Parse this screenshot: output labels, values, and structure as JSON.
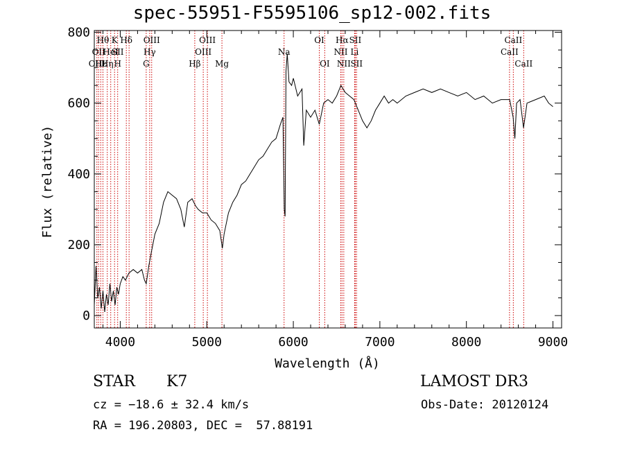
{
  "header": {
    "title": "spec-55951-F5595106_sp12-002.fits"
  },
  "info": {
    "class_label": "STAR",
    "subclass_label": "K7",
    "survey_label": "LAMOST DR3",
    "cz_text": "cz = −18.6 ± 32.4 km/s",
    "obs_date_text": "Obs-Date: 20120124",
    "coords_text": "RA = 196.20803, DEC =  57.88191"
  },
  "colors": {
    "spectrum": "#000000",
    "line_marker": "#cc0000",
    "axes": "#000000"
  },
  "chart_data": {
    "type": "line",
    "title": "spec-55951-F5595106_sp12-002.fits",
    "xlabel": "Wavelength (Å)",
    "ylabel": "Flux (relative)",
    "xlim": [
      3700,
      9100
    ],
    "ylim": [
      -35,
      805
    ],
    "xticks": [
      4000,
      5000,
      6000,
      7000,
      8000,
      9000
    ],
    "yticks": [
      0,
      200,
      400,
      600,
      800
    ],
    "grid": false,
    "series": [
      {
        "points": [
          [
            3700,
            30
          ],
          [
            3720,
            140
          ],
          [
            3740,
            50
          ],
          [
            3760,
            80
          ],
          [
            3780,
            20
          ],
          [
            3800,
            70
          ],
          [
            3820,
            10
          ],
          [
            3840,
            60
          ],
          [
            3860,
            30
          ],
          [
            3880,
            90
          ],
          [
            3900,
            40
          ],
          [
            3920,
            70
          ],
          [
            3940,
            30
          ],
          [
            3960,
            80
          ],
          [
            3980,
            60
          ],
          [
            4000,
            90
          ],
          [
            4030,
            110
          ],
          [
            4060,
            100
          ],
          [
            4100,
            120
          ],
          [
            4150,
            130
          ],
          [
            4200,
            120
          ],
          [
            4250,
            130
          ],
          [
            4280,
            100
          ],
          [
            4300,
            90
          ],
          [
            4330,
            140
          ],
          [
            4360,
            180
          ],
          [
            4400,
            230
          ],
          [
            4450,
            260
          ],
          [
            4500,
            320
          ],
          [
            4550,
            350
          ],
          [
            4600,
            340
          ],
          [
            4650,
            330
          ],
          [
            4700,
            300
          ],
          [
            4740,
            250
          ],
          [
            4780,
            320
          ],
          [
            4830,
            330
          ],
          [
            4870,
            310
          ],
          [
            4900,
            300
          ],
          [
            4950,
            290
          ],
          [
            5000,
            290
          ],
          [
            5050,
            270
          ],
          [
            5100,
            260
          ],
          [
            5150,
            240
          ],
          [
            5180,
            190
          ],
          [
            5200,
            230
          ],
          [
            5250,
            290
          ],
          [
            5300,
            320
          ],
          [
            5350,
            340
          ],
          [
            5400,
            370
          ],
          [
            5450,
            380
          ],
          [
            5500,
            400
          ],
          [
            5550,
            420
          ],
          [
            5600,
            440
          ],
          [
            5650,
            450
          ],
          [
            5700,
            470
          ],
          [
            5750,
            490
          ],
          [
            5800,
            500
          ],
          [
            5850,
            540
          ],
          [
            5880,
            560
          ],
          [
            5895,
            300
          ],
          [
            5905,
            280
          ],
          [
            5915,
            690
          ],
          [
            5930,
            740
          ],
          [
            5950,
            660
          ],
          [
            5980,
            650
          ],
          [
            6000,
            670
          ],
          [
            6050,
            620
          ],
          [
            6100,
            640
          ],
          [
            6120,
            480
          ],
          [
            6150,
            580
          ],
          [
            6200,
            560
          ],
          [
            6250,
            580
          ],
          [
            6300,
            540
          ],
          [
            6350,
            600
          ],
          [
            6400,
            610
          ],
          [
            6450,
            600
          ],
          [
            6500,
            620
          ],
          [
            6550,
            650
          ],
          [
            6600,
            630
          ],
          [
            6650,
            620
          ],
          [
            6700,
            610
          ],
          [
            6750,
            580
          ],
          [
            6800,
            550
          ],
          [
            6850,
            530
          ],
          [
            6900,
            550
          ],
          [
            6950,
            580
          ],
          [
            7000,
            600
          ],
          [
            7050,
            620
          ],
          [
            7100,
            600
          ],
          [
            7150,
            610
          ],
          [
            7200,
            600
          ],
          [
            7300,
            620
          ],
          [
            7400,
            630
          ],
          [
            7500,
            640
          ],
          [
            7600,
            630
          ],
          [
            7700,
            640
          ],
          [
            7800,
            630
          ],
          [
            7900,
            620
          ],
          [
            8000,
            630
          ],
          [
            8100,
            610
          ],
          [
            8200,
            620
          ],
          [
            8300,
            600
          ],
          [
            8400,
            610
          ],
          [
            8500,
            610
          ],
          [
            8540,
            560
          ],
          [
            8560,
            500
          ],
          [
            8580,
            600
          ],
          [
            8620,
            610
          ],
          [
            8660,
            530
          ],
          [
            8700,
            600
          ],
          [
            8800,
            610
          ],
          [
            8900,
            620
          ],
          [
            8950,
            600
          ],
          [
            9000,
            590
          ]
        ]
      }
    ],
    "line_markers": [
      {
        "x": 3730,
        "labels": [
          "",
          "",
          "OIII"
        ]
      },
      {
        "x": 3750,
        "labels": [
          "",
          "OII",
          ""
        ]
      },
      {
        "x": 3775,
        "labels": [
          "",
          "",
          "Hε"
        ]
      },
      {
        "x": 3800,
        "labels": [
          "Hθ",
          "",
          ""
        ]
      },
      {
        "x": 3850,
        "labels": [
          "",
          "",
          "Hη"
        ]
      },
      {
        "x": 3890,
        "labels": [
          "",
          "HeI",
          ""
        ]
      },
      {
        "x": 3934,
        "labels": [
          "K",
          "",
          ""
        ]
      },
      {
        "x": 3970,
        "labels": [
          "",
          "SII",
          "H"
        ]
      },
      {
        "x": 4070,
        "labels": [
          "Hδ",
          "",
          ""
        ]
      },
      {
        "x": 4102,
        "labels": [
          "",
          "",
          ""
        ]
      },
      {
        "x": 4300,
        "labels": [
          "",
          "",
          "G"
        ]
      },
      {
        "x": 4340,
        "labels": [
          "",
          "Hγ",
          ""
        ]
      },
      {
        "x": 4363,
        "labels": [
          "OIII",
          "",
          ""
        ]
      },
      {
        "x": 4861,
        "labels": [
          "",
          "",
          "Hβ"
        ]
      },
      {
        "x": 4959,
        "labels": [
          "",
          "OIII",
          ""
        ]
      },
      {
        "x": 5007,
        "labels": [
          "OIII",
          "",
          ""
        ]
      },
      {
        "x": 5175,
        "labels": [
          "",
          "",
          "Mg"
        ]
      },
      {
        "x": 5893,
        "labels": [
          "",
          "Na",
          ""
        ]
      },
      {
        "x": 6300,
        "labels": [
          "OI",
          "",
          ""
        ]
      },
      {
        "x": 6363,
        "labels": [
          "",
          "",
          "OI"
        ]
      },
      {
        "x": 6548,
        "labels": [
          "",
          "NII",
          ""
        ]
      },
      {
        "x": 6563,
        "labels": [
          "Hα",
          "",
          ""
        ]
      },
      {
        "x": 6583,
        "labels": [
          "",
          "",
          "NII"
        ]
      },
      {
        "x": 6708,
        "labels": [
          "",
          "Li",
          ""
        ]
      },
      {
        "x": 6716,
        "labels": [
          "SII",
          "",
          ""
        ]
      },
      {
        "x": 6731,
        "labels": [
          "",
          "",
          "SII"
        ]
      },
      {
        "x": 8498,
        "labels": [
          "",
          "CaII",
          ""
        ]
      },
      {
        "x": 8542,
        "labels": [
          "CaII",
          "",
          ""
        ]
      },
      {
        "x": 8662,
        "labels": [
          "",
          "",
          "CaII"
        ]
      }
    ]
  }
}
